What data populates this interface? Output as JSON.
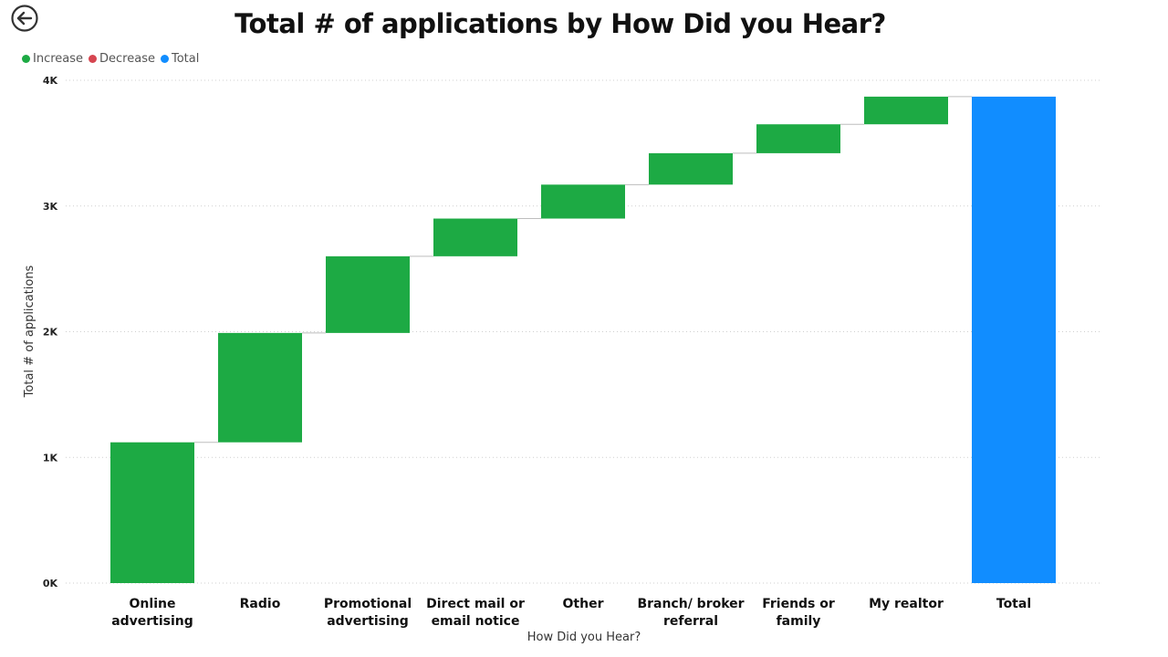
{
  "page": {
    "title": "Total # of applications by How Did you Hear?",
    "back_icon": "back-arrow-circle-icon"
  },
  "legend": {
    "items": [
      {
        "label": "Increase",
        "color": "#1DAA44"
      },
      {
        "label": "Decrease",
        "color": "#D64550"
      },
      {
        "label": "Total",
        "color": "#118DFF"
      }
    ]
  },
  "chart_data": {
    "type": "waterfall",
    "title": "Total # of applications by How Did you Hear?",
    "xlabel": "How Did you Hear?",
    "ylabel": "Total # of applications",
    "ylim": [
      0,
      4000
    ],
    "yticks": [
      "0K",
      "1K",
      "2K",
      "3K",
      "4K"
    ],
    "grid": true,
    "legend_position": "top-left",
    "categories": [
      [
        "Online",
        "advertising"
      ],
      [
        "Radio"
      ],
      [
        "Promotional",
        "advertising"
      ],
      [
        "Direct mail or",
        "email notice"
      ],
      [
        "Other"
      ],
      [
        "Branch/ broker",
        "referral"
      ],
      [
        "Friends or",
        "family"
      ],
      [
        "My realtor"
      ],
      [
        "Total"
      ]
    ],
    "values": [
      1120,
      870,
      610,
      300,
      270,
      250,
      230,
      220,
      3870
    ],
    "kinds": [
      "increase",
      "increase",
      "increase",
      "increase",
      "increase",
      "increase",
      "increase",
      "increase",
      "total"
    ],
    "colors": {
      "increase": "#1DAA44",
      "decrease": "#D64550",
      "total": "#118DFF"
    }
  }
}
